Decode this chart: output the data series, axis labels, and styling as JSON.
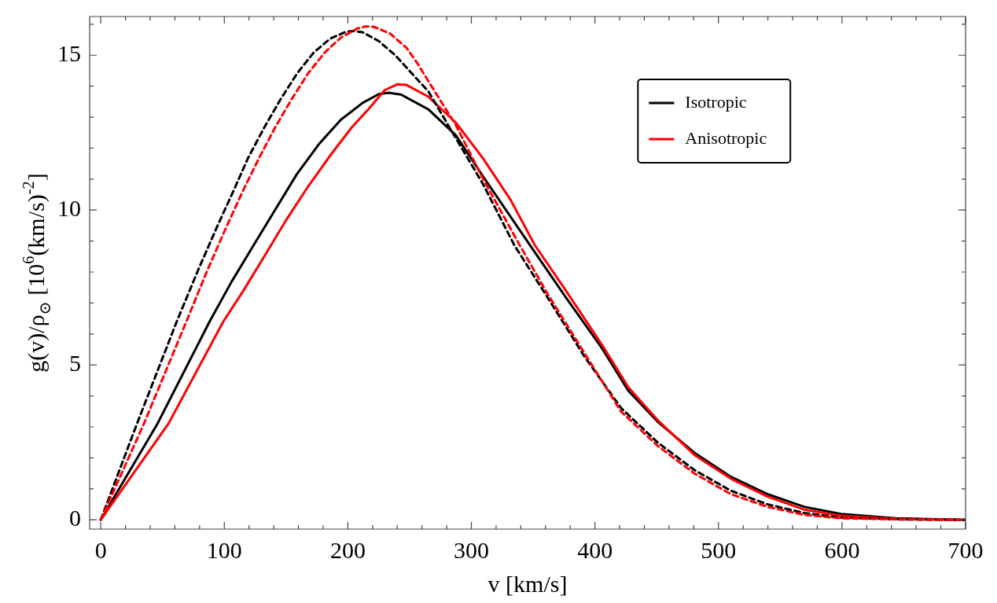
{
  "chart_data": {
    "type": "line",
    "xlabel": "v [km/s]",
    "ylabel": "g(v)/ρ$_{⊙}$ [10$^{6}$(km/s)$^{-2}$]",
    "xlim": [
      -9,
      700
    ],
    "ylim": [
      -0.3,
      16.25
    ],
    "xticks": [
      0,
      {
        "value": 20,
        "label": null
      },
      {
        "value": 40,
        "label": null
      },
      {
        "value": 60,
        "label": null
      },
      {
        "value": 80,
        "label": null
      },
      100,
      {
        "value": 120,
        "label": null
      },
      {
        "value": 140,
        "label": null
      },
      {
        "value": 160,
        "label": null
      },
      {
        "value": 180,
        "label": null
      },
      200,
      {
        "value": 220,
        "label": null
      },
      {
        "value": 240,
        "label": null
      },
      {
        "value": 260,
        "label": null
      },
      {
        "value": 280,
        "label": null
      },
      300,
      {
        "value": 320,
        "label": null
      },
      {
        "value": 340,
        "label": null
      },
      {
        "value": 360,
        "label": null
      },
      {
        "value": 380,
        "label": null
      },
      400,
      {
        "value": 420,
        "label": null
      },
      {
        "value": 440,
        "label": null
      },
      {
        "value": 460,
        "label": null
      },
      {
        "value": 480,
        "label": null
      },
      500,
      {
        "value": 520,
        "label": null
      },
      {
        "value": 540,
        "label": null
      },
      {
        "value": 560,
        "label": null
      },
      {
        "value": 580,
        "label": null
      },
      600,
      {
        "value": 620,
        "label": null
      },
      {
        "value": 640,
        "label": null
      },
      {
        "value": 660,
        "label": null
      },
      {
        "value": 680,
        "label": null
      },
      700
    ],
    "yticks": [
      0,
      {
        "value": 1,
        "label": null
      },
      {
        "value": 2,
        "label": null
      },
      {
        "value": 3,
        "label": null
      },
      {
        "value": 4,
        "label": null
      },
      5,
      {
        "value": 6,
        "label": null
      },
      {
        "value": 7,
        "label": null
      },
      {
        "value": 8,
        "label": null
      },
      {
        "value": 9,
        "label": null
      },
      10,
      {
        "value": 11,
        "label": null
      },
      {
        "value": 12,
        "label": null
      },
      {
        "value": 13,
        "label": null
      },
      {
        "value": 14,
        "label": null
      },
      15,
      {
        "value": 16,
        "label": null
      }
    ],
    "grid": false,
    "legend": "top right",
    "marker": "none",
    "series": [
      {
        "name": "Isotropic",
        "color": "#000000",
        "line_style": "solid",
        "x": [
          0,
          46,
          88.1,
          105.8,
          123.5,
          141.2,
          158.9,
          176.6,
          194.4,
          212,
          225.3,
          233.1,
          243,
          265.2,
          287.3,
          309.4,
          346.9,
          376.5,
          406.2,
          427,
          450.7,
          480.4,
          510,
          539.7,
          569.4,
          599.1,
          643.6,
          700
        ],
        "values": [
          0,
          3.11,
          6.4,
          7.68,
          8.85,
          10.01,
          11.17,
          12.13,
          12.92,
          13.46,
          13.75,
          13.79,
          13.73,
          13.25,
          12.42,
          11.09,
          8.9,
          7.18,
          5.51,
          4.17,
          3.17,
          2.17,
          1.39,
          0.83,
          0.42,
          0.19,
          0.05,
          0
        ]
      },
      {
        "name": "Anisotropic",
        "color": "#ff0000",
        "line_style": "solid",
        "x": [
          0,
          54.9,
          99.2,
          114.7,
          132.4,
          150.1,
          167.8,
          185.5,
          203.2,
          216.5,
          229.8,
          239.8,
          247.5,
          265.2,
          287.3,
          309.4,
          331.6,
          351.3,
          376.5,
          406.2,
          427,
          450.7,
          480.4,
          510,
          539.7,
          569.4,
          599.1,
          643.6,
          700
        ],
        "values": [
          0,
          3.11,
          6.4,
          7.35,
          8.51,
          9.68,
          10.76,
          11.75,
          12.67,
          13.25,
          13.87,
          14.06,
          14.04,
          13.66,
          12.83,
          11.67,
          10.34,
          8.87,
          7.4,
          5.62,
          4.28,
          3.22,
          2.1,
          1.33,
          0.75,
          0.33,
          0.13,
          0.03,
          0
        ]
      },
      {
        "color": "#000000",
        "line_style": "dashed",
        "x": [
          0,
          29.4,
          61.5,
          79.2,
          94.7,
          108,
          119.1,
          132.4,
          145.6,
          158.9,
          172.2,
          185.5,
          198.7,
          205.4,
          212,
          225.3,
          238.6,
          251.9,
          265.2,
          287.3,
          309.4,
          335,
          361.7,
          391.4,
          421.1,
          450.7,
          480.4,
          510,
          539.7,
          569.4,
          599.1,
          650,
          700
        ],
        "values": [
          0,
          3.11,
          6.4,
          8.1,
          9.51,
          10.67,
          11.67,
          12.67,
          13.58,
          14.41,
          15.08,
          15.53,
          15.76,
          15.78,
          15.74,
          15.45,
          14.99,
          14.41,
          13.83,
          12.33,
          10.84,
          8.85,
          7.18,
          5.28,
          3.61,
          2.5,
          1.61,
          0.94,
          0.5,
          0.22,
          0.07,
          0.01,
          0
        ]
      },
      {
        "color": "#ff0000",
        "line_style": "dashed",
        "x": [
          0,
          35,
          69.3,
          85.9,
          101.4,
          114.7,
          128,
          141.2,
          154.5,
          167.8,
          181.1,
          194.4,
          207.6,
          214.3,
          220.9,
          234.2,
          247.5,
          256.3,
          265.2,
          287.3,
          309.4,
          338.2,
          361.7,
          391.4,
          421.1,
          450.7,
          480.4,
          510,
          539.7,
          569.4,
          599.1,
          650,
          700
        ],
        "values": [
          0,
          3.11,
          6.4,
          8.02,
          9.43,
          10.59,
          11.67,
          12.67,
          13.58,
          14.41,
          15.08,
          15.57,
          15.86,
          15.93,
          15.92,
          15.7,
          15.24,
          14.74,
          14.16,
          12.75,
          11.01,
          8.93,
          7.29,
          5.39,
          3.5,
          2.39,
          1.5,
          0.83,
          0.42,
          0.16,
          0.05,
          0.01,
          0
        ]
      }
    ]
  }
}
